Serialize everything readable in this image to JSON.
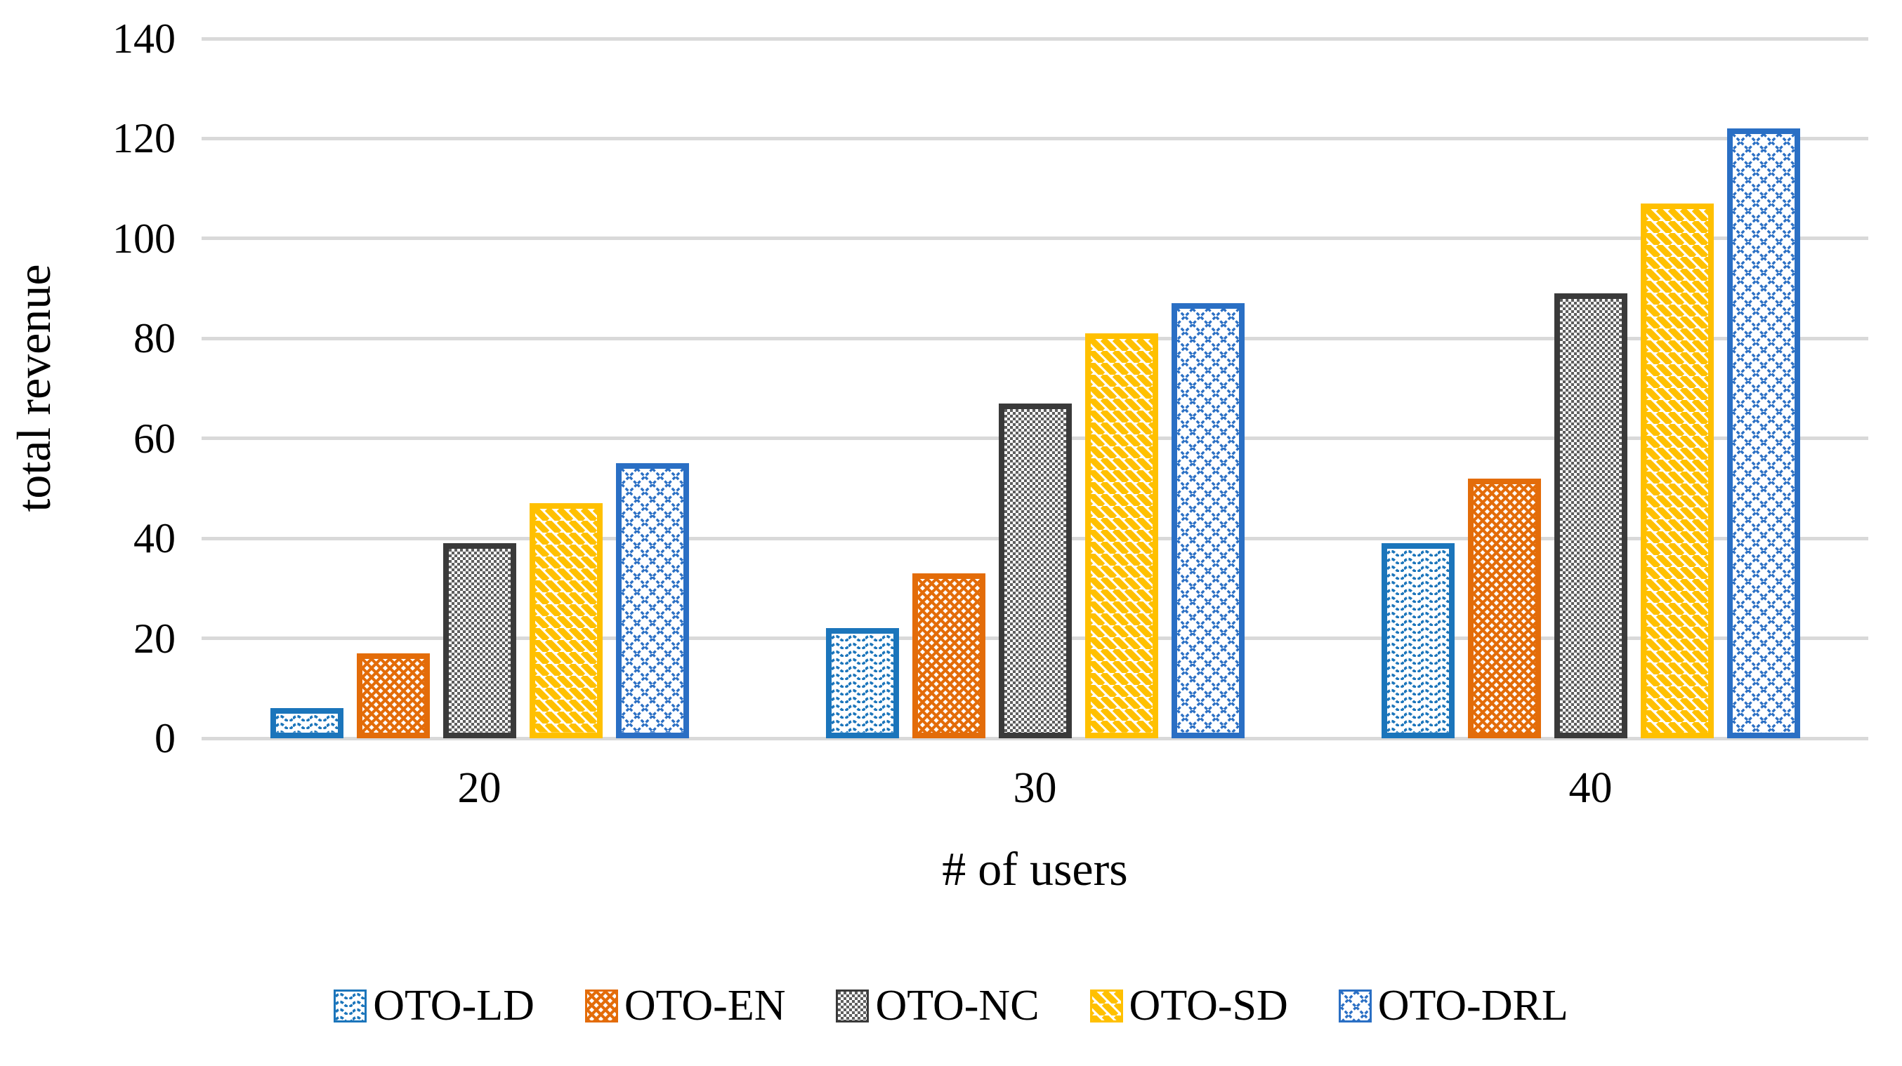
{
  "chart_data": {
    "type": "bar",
    "title": "",
    "categories": [
      "20",
      "30",
      "40"
    ],
    "series": [
      {
        "name": "OTO-LD",
        "color": "#1B75BB",
        "pattern": "wave",
        "values": [
          6,
          22,
          39
        ]
      },
      {
        "name": "OTO-EN",
        "color": "#E36C09",
        "pattern": "diamond-lattice",
        "values": [
          17,
          33,
          52
        ]
      },
      {
        "name": "OTO-NC",
        "color": "#3A3A3A",
        "pattern": "checker",
        "values": [
          39,
          67,
          89
        ]
      },
      {
        "name": "OTO-SD",
        "color": "#FFC000",
        "pattern": "diagonal-stripe",
        "values": [
          47,
          81,
          107
        ]
      },
      {
        "name": "OTO-DRL",
        "color": "#2A6FC4",
        "pattern": "diagonal-crosshatch",
        "values": [
          55,
          87,
          122
        ]
      }
    ],
    "xlabel": "# of users",
    "ylabel": "total revenue",
    "ylim": [
      0,
      140
    ],
    "yticks": [
      0,
      20,
      40,
      60,
      80,
      100,
      120,
      140
    ],
    "grid": true,
    "gridline_color": "#D9D9D9",
    "axis_line_color": "#D9D9D9",
    "text_color": "#000000",
    "background_color": "#FFFFFF",
    "legend_position": "bottom"
  }
}
